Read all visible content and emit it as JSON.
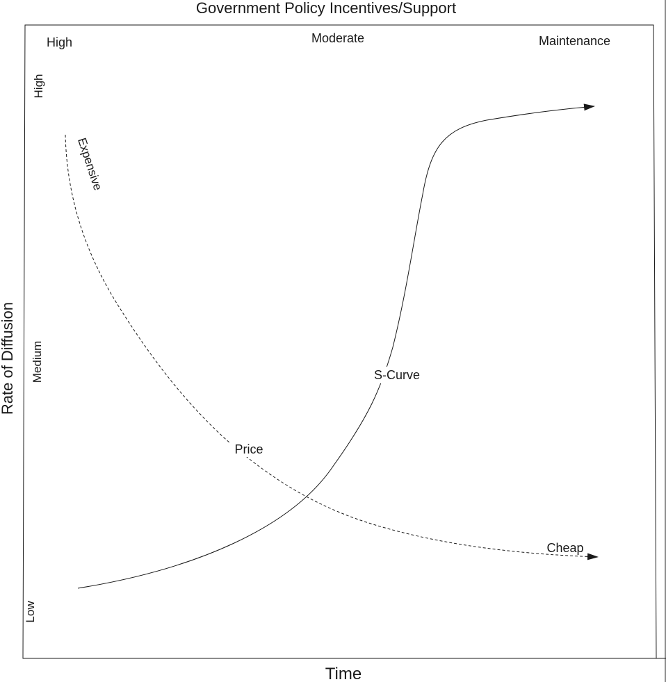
{
  "title": "Government Policy Incentives/Support",
  "top_labels": [
    "High",
    "Moderate",
    "Maintenance"
  ],
  "y_axis_label": "Rate of Diffusion",
  "y_levels": [
    "High",
    "Medium",
    "Low"
  ],
  "x_axis_label": "Time",
  "curves": {
    "price": {
      "label": "Price",
      "start_label": "Expensive",
      "end_label": "Cheap"
    },
    "s_curve": {
      "label": "S-Curve"
    }
  }
}
